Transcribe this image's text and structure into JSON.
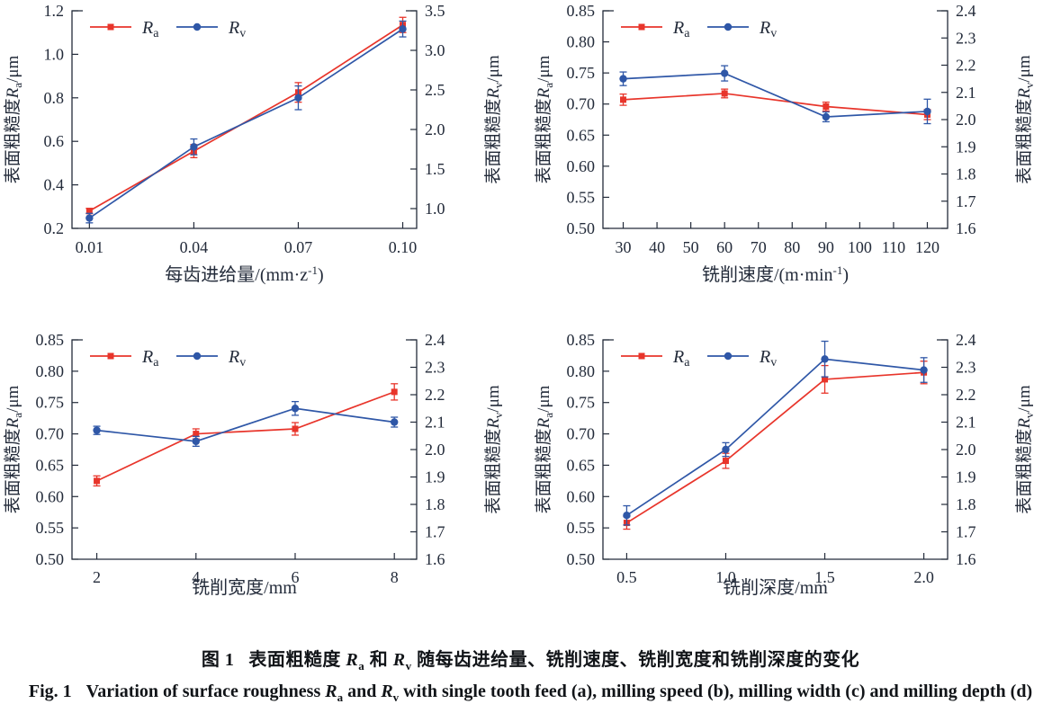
{
  "figure": {
    "caption_zh": {
      "label": "图 1",
      "pre": "表面粗糙度 ",
      "sym1": "R",
      "sub1": "a",
      "mid": " 和 ",
      "sym2": "R",
      "sub2": "v",
      "post": " 随每齿进给量、铣削速度、铣削宽度和铣削深度的变化"
    },
    "caption_en": {
      "label": "Fig. 1",
      "pre": "Variation of surface roughness ",
      "sym1": "R",
      "sub1": "a",
      "mid": " and ",
      "sym2": "R",
      "sub2": "v",
      "post": " with single tooth feed (a), milling speed (b), milling width (c) and milling depth (d)"
    }
  },
  "colors": {
    "ra": "#e8352b",
    "rv": "#2f57a7",
    "ink": "#232b3a"
  },
  "chart_data": [
    {
      "panel": "a",
      "type": "line",
      "subtitle_tag": "(a)",
      "subtitle_text": " 每齿进给量",
      "xlabel_pre": "每齿进给量/(mm·z",
      "xlabel_sup": "-1",
      "xlabel_post": ")",
      "x_range": [
        0.005,
        0.104
      ],
      "x_ticks": [
        0.01,
        0.04,
        0.07,
        0.1
      ],
      "x_tick_labels": [
        "0.01",
        "0.04",
        "0.07",
        "0.10"
      ],
      "axis_left": {
        "pre": "表面粗糙度",
        "sym": "R",
        "sub": "a",
        "post": "/μm",
        "range": [
          0.2,
          1.2
        ],
        "ticks": [
          0.2,
          0.4,
          0.6,
          0.8,
          1.0,
          1.2
        ],
        "tick_labels": [
          "0.2",
          "0.4",
          "0.6",
          "0.8",
          "1.0",
          "1.2"
        ]
      },
      "axis_right": {
        "pre": "表面粗糙度",
        "sym": "R",
        "sub": "v",
        "post": "/μm",
        "range": [
          0.75,
          3.5
        ],
        "ticks": [
          1.0,
          1.5,
          2.0,
          2.5,
          3.0,
          3.5
        ],
        "tick_labels": [
          "1.0",
          "1.5",
          "2.0",
          "2.5",
          "3.0",
          "3.5"
        ]
      },
      "legend": [
        {
          "sym": "R",
          "sub": "a"
        },
        {
          "sym": "R",
          "sub": "v"
        }
      ],
      "series": [
        {
          "name": "Ra",
          "axis": "left",
          "marker": "square",
          "color_key": "ra",
          "x": [
            0.01,
            0.04,
            0.07,
            0.1
          ],
          "y": [
            0.28,
            0.555,
            0.825,
            1.135
          ],
          "err": [
            0.012,
            0.03,
            0.045,
            0.035
          ]
        },
        {
          "name": "Rv",
          "axis": "right",
          "marker": "circle",
          "color_key": "rv",
          "x": [
            0.01,
            0.04,
            0.07,
            0.1
          ],
          "y": [
            0.88,
            1.78,
            2.4,
            3.27
          ],
          "err": [
            0.06,
            0.1,
            0.15,
            0.1
          ]
        }
      ]
    },
    {
      "panel": "b",
      "type": "line",
      "subtitle_tag": "(b)",
      "subtitle_text": " 铣削速度",
      "xlabel_pre": "铣削速度/(m·min",
      "xlabel_sup": "-1",
      "xlabel_post": ")",
      "x_range": [
        24,
        126
      ],
      "x_ticks": [
        30,
        40,
        50,
        60,
        70,
        80,
        90,
        100,
        110,
        120
      ],
      "x_tick_labels": [
        "30",
        "40",
        "50",
        "60",
        "70",
        "80",
        "90",
        "100",
        "110",
        "120"
      ],
      "axis_left": {
        "pre": "表面粗糙度",
        "sym": "R",
        "sub": "a",
        "post": "/μm",
        "range": [
          0.5,
          0.85
        ],
        "ticks": [
          0.5,
          0.55,
          0.6,
          0.65,
          0.7,
          0.75,
          0.8,
          0.85
        ],
        "tick_labels": [
          "0.50",
          "0.55",
          "0.60",
          "0.65",
          "0.70",
          "0.75",
          "0.80",
          "0.85"
        ]
      },
      "axis_right": {
        "pre": "表面粗糙度",
        "sym": "R",
        "sub": "v",
        "post": "/μm",
        "range": [
          1.6,
          2.4
        ],
        "ticks": [
          1.6,
          1.7,
          1.8,
          1.9,
          2.0,
          2.1,
          2.2,
          2.3,
          2.4
        ],
        "tick_labels": [
          "1.6",
          "1.7",
          "1.8",
          "1.9",
          "2.0",
          "2.1",
          "2.2",
          "2.3",
          "2.4"
        ]
      },
      "legend": [
        {
          "sym": "R",
          "sub": "a"
        },
        {
          "sym": "R",
          "sub": "v"
        }
      ],
      "series": [
        {
          "name": "Ra",
          "axis": "left",
          "marker": "square",
          "color_key": "ra",
          "x": [
            30,
            60,
            90,
            120
          ],
          "y": [
            0.707,
            0.717,
            0.696,
            0.683
          ],
          "err": [
            0.009,
            0.007,
            0.007,
            0.008
          ]
        },
        {
          "name": "Rv",
          "axis": "right",
          "marker": "circle",
          "color_key": "rv",
          "x": [
            30,
            60,
            90,
            120
          ],
          "y": [
            2.15,
            2.17,
            2.01,
            2.03
          ],
          "err": [
            0.025,
            0.028,
            0.018,
            0.045
          ]
        }
      ]
    },
    {
      "panel": "c",
      "type": "line",
      "subtitle_tag": "(c)",
      "subtitle_text": " 铣削宽度",
      "xlabel_pre": "铣削宽度/mm",
      "xlabel_sup": "",
      "xlabel_post": "",
      "x_range": [
        1.5,
        8.45
      ],
      "x_ticks": [
        2,
        4,
        6,
        8
      ],
      "x_tick_labels": [
        "2",
        "4",
        "6",
        "8"
      ],
      "axis_left": {
        "pre": "表面粗糙度",
        "sym": "R",
        "sub": "a",
        "post": "/μm",
        "range": [
          0.5,
          0.85
        ],
        "ticks": [
          0.5,
          0.55,
          0.6,
          0.65,
          0.7,
          0.75,
          0.8,
          0.85
        ],
        "tick_labels": [
          "0.50",
          "0.55",
          "0.60",
          "0.65",
          "0.70",
          "0.75",
          "0.80",
          "0.85"
        ]
      },
      "axis_right": {
        "pre": "表面粗糙度",
        "sym": "R",
        "sub": "v",
        "post": "/μm",
        "range": [
          1.6,
          2.4
        ],
        "ticks": [
          1.6,
          1.7,
          1.8,
          1.9,
          2.0,
          2.1,
          2.2,
          2.3,
          2.4
        ],
        "tick_labels": [
          "1.6",
          "1.7",
          "1.8",
          "1.9",
          "2.0",
          "2.1",
          "2.2",
          "2.3",
          "2.4"
        ]
      },
      "legend": [
        {
          "sym": "R",
          "sub": "a"
        },
        {
          "sym": "R",
          "sub": "v"
        }
      ],
      "series": [
        {
          "name": "Ra",
          "axis": "left",
          "marker": "square",
          "color_key": "ra",
          "x": [
            2,
            4,
            6,
            8
          ],
          "y": [
            0.625,
            0.7,
            0.708,
            0.767
          ],
          "err": [
            0.008,
            0.008,
            0.01,
            0.013
          ]
        },
        {
          "name": "Rv",
          "axis": "right",
          "marker": "circle",
          "color_key": "rv",
          "x": [
            2,
            4,
            6,
            8
          ],
          "y": [
            2.07,
            2.03,
            2.15,
            2.1
          ],
          "err": [
            0.015,
            0.018,
            0.025,
            0.018
          ]
        }
      ]
    },
    {
      "panel": "d",
      "type": "line",
      "subtitle_tag": "(d)",
      "subtitle_text": " 铣削深度",
      "xlabel_pre": "铣削深度/mm",
      "xlabel_sup": "",
      "xlabel_post": "",
      "x_range": [
        0.38,
        2.12
      ],
      "x_ticks": [
        0.5,
        1.0,
        1.5,
        2.0
      ],
      "x_tick_labels": [
        "0.5",
        "1.0",
        "1.5",
        "2.0"
      ],
      "axis_left": {
        "pre": "表面粗糙度",
        "sym": "R",
        "sub": "a",
        "post": "/μm",
        "range": [
          0.5,
          0.85
        ],
        "ticks": [
          0.5,
          0.55,
          0.6,
          0.65,
          0.7,
          0.75,
          0.8,
          0.85
        ],
        "tick_labels": [
          "0.50",
          "0.55",
          "0.60",
          "0.65",
          "0.70",
          "0.75",
          "0.80",
          "0.85"
        ]
      },
      "axis_right": {
        "pre": "表面粗糙度",
        "sym": "R",
        "sub": "v",
        "post": "/μm",
        "range": [
          1.6,
          2.4
        ],
        "ticks": [
          1.6,
          1.7,
          1.8,
          1.9,
          2.0,
          2.1,
          2.2,
          2.3,
          2.4
        ],
        "tick_labels": [
          "1.6",
          "1.7",
          "1.8",
          "1.9",
          "2.0",
          "2.1",
          "2.2",
          "2.3",
          "2.4"
        ]
      },
      "legend": [
        {
          "sym": "R",
          "sub": "a"
        },
        {
          "sym": "R",
          "sub": "v"
        }
      ],
      "series": [
        {
          "name": "Ra",
          "axis": "left",
          "marker": "square",
          "color_key": "ra",
          "x": [
            0.5,
            1.0,
            1.5,
            2.0
          ],
          "y": [
            0.558,
            0.657,
            0.787,
            0.798
          ],
          "err": [
            0.01,
            0.012,
            0.022,
            0.018
          ]
        },
        {
          "name": "Rv",
          "axis": "right",
          "marker": "circle",
          "color_key": "rv",
          "x": [
            0.5,
            1.0,
            1.5,
            2.0
          ],
          "y": [
            1.76,
            2.0,
            2.33,
            2.29
          ],
          "err": [
            0.035,
            0.025,
            0.065,
            0.045
          ]
        }
      ]
    }
  ]
}
